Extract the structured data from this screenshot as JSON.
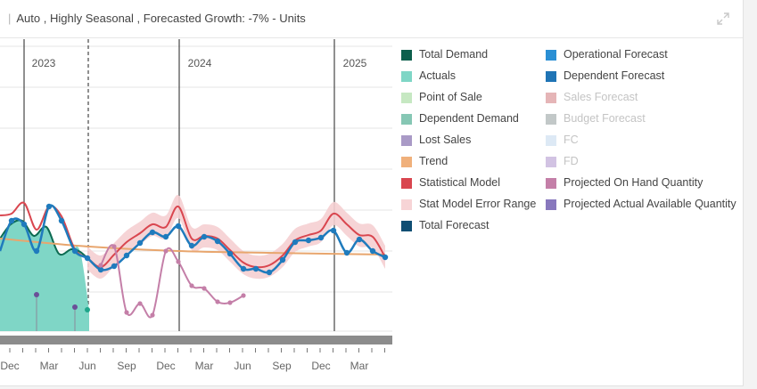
{
  "header": {
    "text": "Auto ,  Highly Seasonal , Forecasted Growth: -7%  -  Units",
    "expand_icon": "expand-arrows-icon"
  },
  "colors": {
    "statistical_model": "#d9464f",
    "error_band": "#f5cfd2",
    "dependent_forecast": "#1f7bbd",
    "trend": "#e8a66e",
    "actuals_fill": "#7fd6c6",
    "total_demand": "#0d6b52",
    "projected_on_hand": "#c47fa8",
    "lost_sales": "#6b4f98",
    "grid": "#e6e6e6",
    "scrollbar": "#8c8c8c"
  },
  "chart_data": {
    "type": "line",
    "year_labels": [
      "2023",
      "2024",
      "2025"
    ],
    "x_tick_labels": [
      "Dec",
      "Mar",
      "Jun",
      "Sep",
      "Dec",
      "Mar",
      "Jun",
      "Sep",
      "Dec",
      "Mar"
    ],
    "legend": [
      {
        "name": "Total Demand",
        "color": "#0d5f4c",
        "active": true
      },
      {
        "name": "Actuals",
        "color": "#7fd6c6",
        "active": true
      },
      {
        "name": "Point of Sale",
        "color": "#c6e8c2",
        "active": true
      },
      {
        "name": "Dependent Demand",
        "color": "#86c7b4",
        "active": true
      },
      {
        "name": "Lost Sales",
        "color": "#a99ac6",
        "active": true
      },
      {
        "name": "Trend",
        "color": "#f0b07b",
        "active": true
      },
      {
        "name": "Statistical Model",
        "color": "#d9464f",
        "active": true
      },
      {
        "name": "Stat Model Error Range",
        "color": "#f7d4d6",
        "active": true
      },
      {
        "name": "Total Forecast",
        "color": "#0f4e73",
        "active": true
      },
      {
        "name": "Operational Forecast",
        "color": "#2a8fd4",
        "active": true
      },
      {
        "name": "Dependent Forecast",
        "color": "#1f74b5",
        "active": true
      },
      {
        "name": "Sales Forecast",
        "color": "#e5b5b7",
        "active": false
      },
      {
        "name": "Budget Forecast",
        "color": "#c2c8c8",
        "active": false
      },
      {
        "name": "FC",
        "color": "#dde9f5",
        "active": false
      },
      {
        "name": "FD",
        "color": "#d2c3e3",
        "active": false
      },
      {
        "name": "Projected On Hand Quantity",
        "color": "#c47fa8",
        "active": true
      },
      {
        "name": "Projected Actual Available Quantity",
        "color": "#8878bd",
        "active": true
      }
    ],
    "series": [
      {
        "name": "Total Demand",
        "values": [
          [
            0,
            268
          ],
          [
            12,
            252
          ],
          [
            25,
            248
          ],
          [
            38,
            265
          ],
          [
            52,
            255
          ],
          [
            66,
            285
          ],
          [
            80,
            280
          ],
          [
            90,
            283
          ],
          [
            100,
            292
          ]
        ]
      },
      {
        "name": "Actuals",
        "values": [
          [
            0,
            268
          ],
          [
            12,
            252
          ],
          [
            25,
            248
          ],
          [
            38,
            265
          ],
          [
            52,
            255
          ],
          [
            66,
            285
          ],
          [
            80,
            280
          ],
          [
            90,
            283
          ],
          [
            100,
            348
          ]
        ]
      },
      {
        "name": "Statistical Model",
        "values": [
          [
            0,
            242
          ],
          [
            13,
            240
          ],
          [
            27,
            228
          ],
          [
            41,
            258
          ],
          [
            55,
            232
          ],
          [
            69,
            243
          ],
          [
            84,
            280
          ],
          [
            98,
            290
          ],
          [
            113,
            300
          ],
          [
            128,
            286
          ],
          [
            142,
            272
          ],
          [
            157,
            262
          ],
          [
            171,
            252
          ],
          [
            186,
            255
          ],
          [
            200,
            232
          ],
          [
            215,
            268
          ],
          [
            229,
            265
          ],
          [
            244,
            268
          ],
          [
            258,
            281
          ],
          [
            273,
            295
          ],
          [
            287,
            300
          ],
          [
            302,
            298
          ],
          [
            317,
            287
          ],
          [
            331,
            270
          ],
          [
            346,
            264
          ],
          [
            360,
            259
          ],
          [
            374,
            240
          ],
          [
            389,
            252
          ],
          [
            403,
            264
          ],
          [
            418,
            266
          ],
          [
            432,
            289
          ]
        ]
      },
      {
        "name": "Dependent Forecast",
        "values": [
          [
            0,
            282
          ],
          [
            13,
            248
          ],
          [
            27,
            252
          ],
          [
            41,
            282
          ],
          [
            55,
            232
          ],
          [
            69,
            248
          ],
          [
            84,
            282
          ],
          [
            98,
            290
          ],
          [
            113,
            303
          ],
          [
            128,
            299
          ],
          [
            142,
            287
          ],
          [
            157,
            273
          ],
          [
            171,
            261
          ],
          [
            186,
            266
          ],
          [
            200,
            254
          ],
          [
            215,
            276
          ],
          [
            229,
            266
          ],
          [
            244,
            271
          ],
          [
            258,
            285
          ],
          [
            273,
            302
          ],
          [
            287,
            302
          ],
          [
            302,
            306
          ],
          [
            317,
            292
          ],
          [
            331,
            272
          ],
          [
            346,
            270
          ],
          [
            360,
            267
          ],
          [
            374,
            259
          ],
          [
            389,
            284
          ],
          [
            403,
            269
          ],
          [
            418,
            282
          ],
          [
            432,
            289
          ]
        ]
      },
      {
        "name": "Trend",
        "values": [
          [
            0,
            268
          ],
          [
            100,
            277
          ],
          [
            200,
            282
          ],
          [
            300,
            284
          ],
          [
            432,
            286
          ]
        ]
      },
      {
        "name": "Projected On Hand Quantity",
        "values": [
          [
            113,
            298
          ],
          [
            128,
            277
          ],
          [
            142,
            351
          ],
          [
            157,
            341
          ],
          [
            171,
            354
          ],
          [
            186,
            282
          ],
          [
            200,
            294
          ],
          [
            215,
            321
          ],
          [
            229,
            324
          ],
          [
            244,
            339
          ],
          [
            258,
            340
          ],
          [
            273,
            332
          ]
        ]
      },
      {
        "name": "Lost Sales",
        "values": [
          [
            41,
            331
          ],
          [
            84,
            345
          ]
        ]
      }
    ]
  }
}
